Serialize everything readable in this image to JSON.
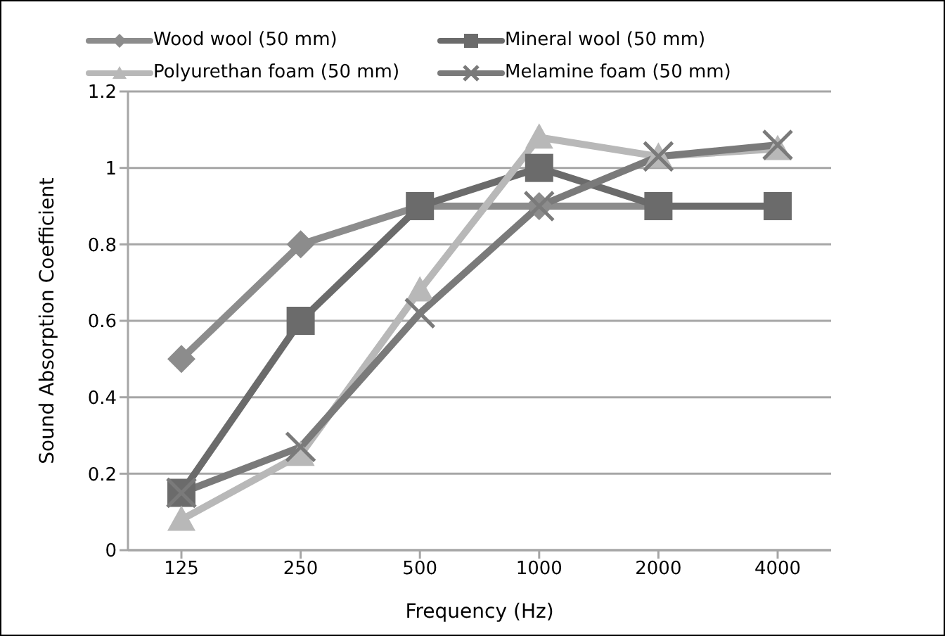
{
  "chart_data": {
    "type": "line",
    "xlabel": "Frequency (Hz)",
    "ylabel": "Sound Absorption Coefficient",
    "categories": [
      "125",
      "250",
      "500",
      "1000",
      "2000",
      "4000"
    ],
    "series": [
      {
        "name": "Wood wool (50 mm)",
        "color": "#8c8c8c",
        "marker": "diamond",
        "values": [
          0.5,
          0.8,
          0.9,
          0.9,
          0.9,
          0.9
        ]
      },
      {
        "name": "Mineral wool (50 mm)",
        "color": "#6b6b6b",
        "marker": "square",
        "values": [
          0.15,
          0.6,
          0.9,
          1.0,
          0.9,
          0.9
        ]
      },
      {
        "name": "Polyurethan foam (50 mm)",
        "color": "#b8b8b8",
        "marker": "triangle",
        "values": [
          0.08,
          0.25,
          0.68,
          1.08,
          1.03,
          1.05
        ]
      },
      {
        "name": "Melamine foam (50 mm)",
        "color": "#7a7a7a",
        "marker": "cross",
        "values": [
          0.15,
          0.27,
          0.62,
          0.9,
          1.03,
          1.06
        ]
      }
    ],
    "ylim": [
      0,
      1.2
    ],
    "yticks": [
      0,
      0.2,
      0.4,
      0.6,
      0.8,
      1,
      1.2
    ],
    "grid": "y",
    "legend": "top"
  }
}
